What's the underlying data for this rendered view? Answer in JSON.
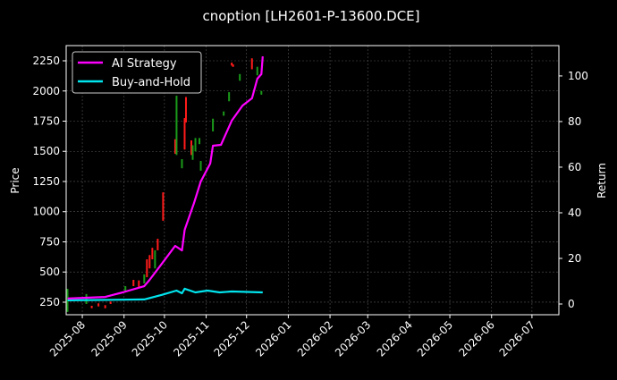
{
  "chart_data": {
    "type": "line",
    "title": "cnoption [LH2601-P-13600.DCE]",
    "ylabel_left": "Price",
    "ylabel_right": "Return",
    "xlim": [
      "2025-07-20",
      "2026-07-21"
    ],
    "ylim_left": [
      146,
      2376
    ],
    "ylim_right": [
      -4.7,
      113.3
    ],
    "x_ticks": [
      "2025-08",
      "2025-09",
      "2025-10",
      "2025-11",
      "2025-12",
      "2026-01",
      "2026-02",
      "2026-03",
      "2026-04",
      "2026-05",
      "2026-06",
      "2026-07"
    ],
    "y_ticks_left": [
      250,
      500,
      750,
      1000,
      1250,
      1500,
      1750,
      2000,
      2250
    ],
    "y_ticks_right": [
      0,
      20,
      40,
      60,
      80,
      100
    ],
    "grid": true,
    "legend_position": "top-left",
    "colors": {
      "up": "#ff1a1a",
      "down": "#1a9a1a",
      "ai": "#ff00ff",
      "bh": "#00e5ee",
      "grid": "#555555"
    },
    "candles": [
      {
        "date": "2025-07-21",
        "open": 360,
        "close": 170,
        "high": 360,
        "low": 170
      },
      {
        "date": "2025-08-04",
        "open": 317,
        "close": 235,
        "high": 317,
        "low": 235
      },
      {
        "date": "2025-08-08",
        "open": 200,
        "close": 220,
        "high": 220,
        "low": 200
      },
      {
        "date": "2025-08-13",
        "open": 215,
        "close": 240,
        "high": 240,
        "low": 215
      },
      {
        "date": "2025-08-18",
        "open": 200,
        "close": 225,
        "high": 225,
        "low": 200
      },
      {
        "date": "2025-08-22",
        "open": 235,
        "close": 255,
        "high": 255,
        "low": 235
      },
      {
        "date": "2025-09-02",
        "open": 383,
        "close": 331,
        "high": 383,
        "low": 331
      },
      {
        "date": "2025-09-08",
        "open": 383,
        "close": 435,
        "high": 435,
        "low": 383
      },
      {
        "date": "2025-09-12",
        "open": 375,
        "close": 430,
        "high": 430,
        "low": 375
      },
      {
        "date": "2025-09-16",
        "open": 480,
        "close": 405,
        "high": 480,
        "low": 405
      },
      {
        "date": "2025-09-18",
        "open": 457,
        "close": 605,
        "high": 605,
        "low": 457
      },
      {
        "date": "2025-09-20",
        "open": 530,
        "close": 640,
        "high": 640,
        "low": 530
      },
      {
        "date": "2025-09-22",
        "open": 605,
        "close": 700,
        "high": 700,
        "low": 605
      },
      {
        "date": "2025-09-24",
        "open": 680,
        "close": 530,
        "high": 680,
        "low": 530
      },
      {
        "date": "2025-09-26",
        "open": 680,
        "close": 775,
        "high": 775,
        "low": 680
      },
      {
        "date": "2025-09-30",
        "open": 925,
        "close": 1160,
        "high": 1160,
        "low": 925
      },
      {
        "date": "2025-10-09",
        "open": 1480,
        "close": 1600,
        "high": 1600,
        "low": 1480
      },
      {
        "date": "2025-10-10",
        "open": 1960,
        "close": 1470,
        "high": 1960,
        "low": 1470
      },
      {
        "date": "2025-10-14",
        "open": 1435,
        "close": 1360,
        "high": 1435,
        "low": 1360
      },
      {
        "date": "2025-10-16",
        "open": 1515,
        "close": 1775,
        "high": 1775,
        "low": 1515
      },
      {
        "date": "2025-10-17",
        "open": 1740,
        "close": 1950,
        "high": 1950,
        "low": 1740
      },
      {
        "date": "2025-10-21",
        "open": 1470,
        "close": 1590,
        "high": 1590,
        "low": 1470
      },
      {
        "date": "2025-10-22",
        "open": 1550,
        "close": 1430,
        "high": 1550,
        "low": 1430
      },
      {
        "date": "2025-10-24",
        "open": 1610,
        "close": 1500,
        "high": 1610,
        "low": 1500
      },
      {
        "date": "2025-10-27",
        "open": 1610,
        "close": 1560,
        "high": 1610,
        "low": 1560
      },
      {
        "date": "2025-10-28",
        "open": 1420,
        "close": 1340,
        "high": 1420,
        "low": 1340
      },
      {
        "date": "2025-11-06",
        "open": 1770,
        "close": 1665,
        "high": 1770,
        "low": 1665
      },
      {
        "date": "2025-11-14",
        "open": 1830,
        "close": 1795,
        "high": 1830,
        "low": 1795
      },
      {
        "date": "2025-11-18",
        "open": 1990,
        "close": 1915,
        "high": 1990,
        "low": 1915
      },
      {
        "date": "2025-11-20",
        "open": 2210,
        "close": 2235,
        "high": 2235,
        "low": 2210
      },
      {
        "date": "2025-11-21",
        "open": 2200,
        "close": 2220,
        "high": 2220,
        "low": 2200
      },
      {
        "date": "2025-11-26",
        "open": 2140,
        "close": 2085,
        "high": 2140,
        "low": 2085
      },
      {
        "date": "2025-12-05",
        "open": 2180,
        "close": 2270,
        "high": 2270,
        "low": 2180
      },
      {
        "date": "2025-12-09",
        "open": 2200,
        "close": 2130,
        "high": 2200,
        "low": 2130
      },
      {
        "date": "2025-12-12",
        "open": 2000,
        "close": 1970,
        "high": 2000,
        "low": 1970
      }
    ],
    "series": [
      {
        "name": "AI Strategy",
        "axis": "right",
        "x": [
          "2025-07-21",
          "2025-08-18",
          "2025-08-31",
          "2025-09-16",
          "2025-09-20",
          "2025-09-29",
          "2025-10-09",
          "2025-10-14",
          "2025-10-16",
          "2025-10-23",
          "2025-10-28",
          "2025-11-04",
          "2025-11-06",
          "2025-11-12",
          "2025-11-20",
          "2025-11-28",
          "2025-12-05",
          "2025-12-09",
          "2025-12-12",
          "2025-12-13"
        ],
        "y": [
          2.4,
          3.1,
          5.1,
          7.8,
          10.6,
          17.6,
          25.5,
          23.5,
          32.5,
          44.3,
          53.7,
          61.6,
          69.4,
          69.8,
          80.4,
          87.0,
          90.2,
          98.8,
          100.8,
          108.6
        ]
      },
      {
        "name": "Buy-and-Hold",
        "axis": "right",
        "x": [
          "2025-07-21",
          "2025-09-16",
          "2025-09-29",
          "2025-10-10",
          "2025-10-14",
          "2025-10-16",
          "2025-10-24",
          "2025-11-02",
          "2025-11-11",
          "2025-11-20",
          "2025-12-13"
        ],
        "y": [
          1.6,
          2.0,
          4.0,
          5.9,
          4.7,
          6.7,
          5.1,
          5.9,
          5.1,
          5.5,
          5.1
        ]
      }
    ]
  }
}
